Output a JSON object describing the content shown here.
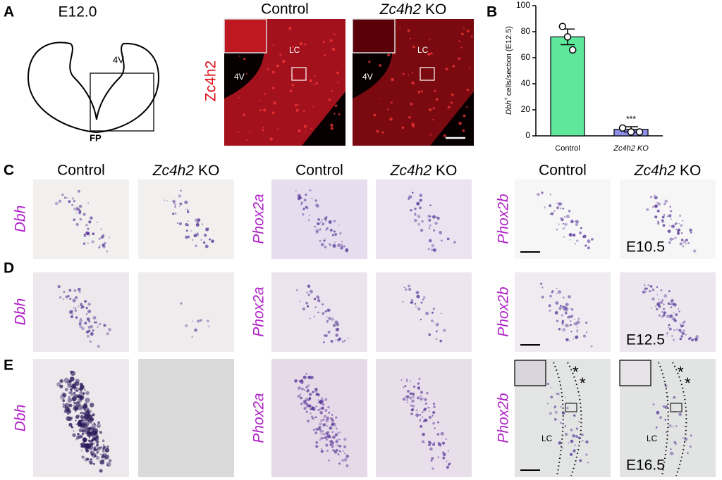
{
  "figure": {
    "panel_labels": [
      "A",
      "B",
      "C",
      "D",
      "E"
    ],
    "schematic": {
      "title": "E12.0",
      "ventricle": "4V",
      "floor_plate": "FP"
    },
    "headers": {
      "control": "Control",
      "mutant_gene": "Zc4h2",
      "mutant_suffix": "KO"
    },
    "fluorescence_label": "Zc4h2",
    "row_labels": [
      "Dbh",
      "Phox2a",
      "Phox2b"
    ],
    "inner_labels": {
      "lc": "LC",
      "ventricle": "4V",
      "star": "*",
      "stages": [
        "E10.5",
        "E12.5",
        "E16.5"
      ]
    }
  },
  "chart_data": {
    "type": "bar",
    "categories": [
      "Control",
      "Zc4h2 KO"
    ],
    "values": [
      76,
      5
    ],
    "errors": [
      6,
      2
    ],
    "points": [
      [
        84,
        76,
        66
      ],
      [
        6,
        3,
        3
      ]
    ],
    "colors": [
      "#5fe89c",
      "#8f8fea"
    ],
    "ylabel": {
      "gene": "Dbh",
      "sup": "+",
      "rest": "cells/section (E12.5)"
    },
    "annotation": "***",
    "ylim": [
      0,
      100
    ],
    "yticks": [
      0,
      20,
      40,
      60,
      80,
      100
    ]
  }
}
